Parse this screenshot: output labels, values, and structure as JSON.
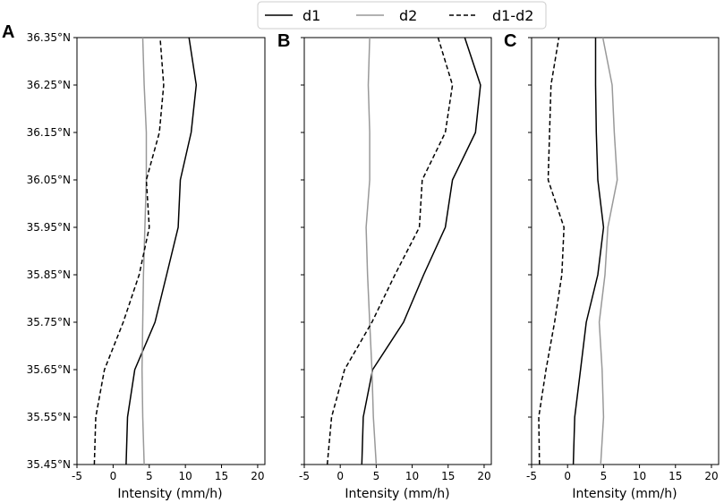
{
  "chart_data": [
    {
      "panel_label": "A",
      "type": "line",
      "xlabel": "Intensity (mm/h)",
      "ylabel": "",
      "xlim": [
        -5,
        21
      ],
      "ylim": [
        35.45,
        36.35
      ],
      "xticks": [
        -5,
        0,
        5,
        10,
        15,
        20
      ],
      "xtick_labels": [
        "-5",
        "0",
        "5",
        "10",
        "15",
        "20"
      ],
      "yticks": [
        35.45,
        35.55,
        35.65,
        35.75,
        35.85,
        35.95,
        36.05,
        36.15,
        36.25,
        36.35
      ],
      "ytick_labels": [
        "35.45°N",
        "35.55°N",
        "35.65°N",
        "35.75°N",
        "35.85°N",
        "35.95°N",
        "36.05°N",
        "36.15°N",
        "36.25°N",
        "36.35°N"
      ],
      "y": [
        35.45,
        35.55,
        35.65,
        35.75,
        35.85,
        35.95,
        36.05,
        36.15,
        36.25,
        36.35
      ],
      "series": [
        {
          "name": "d1",
          "values": [
            1.8,
            2.0,
            3.0,
            5.8,
            7.4,
            9.0,
            9.3,
            10.8,
            11.5,
            10.5
          ]
        },
        {
          "name": "d2",
          "values": [
            4.3,
            4.1,
            4.0,
            4.1,
            4.2,
            4.4,
            4.6,
            4.6,
            4.3,
            4.1
          ]
        },
        {
          "name": "d1-d2",
          "values": [
            -2.6,
            -2.4,
            -1.2,
            1.4,
            3.6,
            5.0,
            4.6,
            6.4,
            7.0,
            6.5
          ]
        }
      ]
    },
    {
      "panel_label": "B",
      "type": "line",
      "xlabel": "Intensity (mm/h)",
      "ylabel": "",
      "xlim": [
        -5,
        21
      ],
      "ylim": [
        35.45,
        36.35
      ],
      "xticks": [
        -5,
        0,
        5,
        10,
        15,
        20
      ],
      "xtick_labels": [
        "-5",
        "0",
        "5",
        "10",
        "15",
        "20"
      ],
      "yticks": [
        35.45,
        35.55,
        35.65,
        35.75,
        35.85,
        35.95,
        36.05,
        36.15,
        36.25,
        36.35
      ],
      "y": [
        35.45,
        35.55,
        35.65,
        35.75,
        35.85,
        35.95,
        36.05,
        36.15,
        36.25,
        36.35
      ],
      "series": [
        {
          "name": "d1",
          "values": [
            3.0,
            3.2,
            4.5,
            8.8,
            11.6,
            14.6,
            15.6,
            18.8,
            19.5,
            17.3
          ]
        },
        {
          "name": "d2",
          "values": [
            5.0,
            4.6,
            4.4,
            4.1,
            3.8,
            3.6,
            4.1,
            4.1,
            3.9,
            4.1
          ]
        },
        {
          "name": "d1-d2",
          "values": [
            -1.8,
            -1.2,
            0.6,
            4.4,
            7.6,
            11.0,
            11.4,
            14.6,
            15.6,
            13.6
          ]
        }
      ]
    },
    {
      "panel_label": "C",
      "type": "line",
      "xlabel": "Intensity (mm/h)",
      "ylabel": "",
      "xlim": [
        -5,
        21
      ],
      "ylim": [
        35.45,
        36.35
      ],
      "xticks": [
        -5,
        0,
        5,
        10,
        15,
        20
      ],
      "xtick_labels": [
        "-5",
        "0",
        "5",
        "10",
        "15",
        "20"
      ],
      "yticks": [
        35.45,
        35.55,
        35.65,
        35.75,
        35.85,
        35.95,
        36.05,
        36.15,
        36.25,
        36.35
      ],
      "y": [
        35.45,
        35.55,
        35.65,
        35.75,
        35.85,
        35.95,
        36.05,
        36.15,
        36.25,
        36.35
      ],
      "series": [
        {
          "name": "d1",
          "values": [
            0.8,
            1.0,
            1.8,
            2.6,
            4.2,
            5.0,
            4.2,
            4.0,
            3.9,
            3.9
          ]
        },
        {
          "name": "d2",
          "values": [
            4.6,
            5.0,
            4.8,
            4.4,
            5.2,
            5.6,
            6.9,
            6.5,
            6.2,
            4.9
          ]
        },
        {
          "name": "d1-d2",
          "values": [
            -3.9,
            -4.0,
            -3.0,
            -1.8,
            -0.8,
            -0.5,
            -2.7,
            -2.5,
            -2.3,
            -1.2
          ]
        }
      ]
    }
  ],
  "legend": {
    "placement": "top-center",
    "entries": [
      {
        "name": "d1",
        "style": "solid",
        "color": "#000000"
      },
      {
        "name": "d2",
        "style": "solid",
        "color": "#999999"
      },
      {
        "name": "d1-d2",
        "style": "dashed",
        "color": "#000000"
      }
    ]
  },
  "colors": {
    "d1": "#000000",
    "d2": "#999999",
    "d1-d2": "#000000"
  },
  "grid": false
}
